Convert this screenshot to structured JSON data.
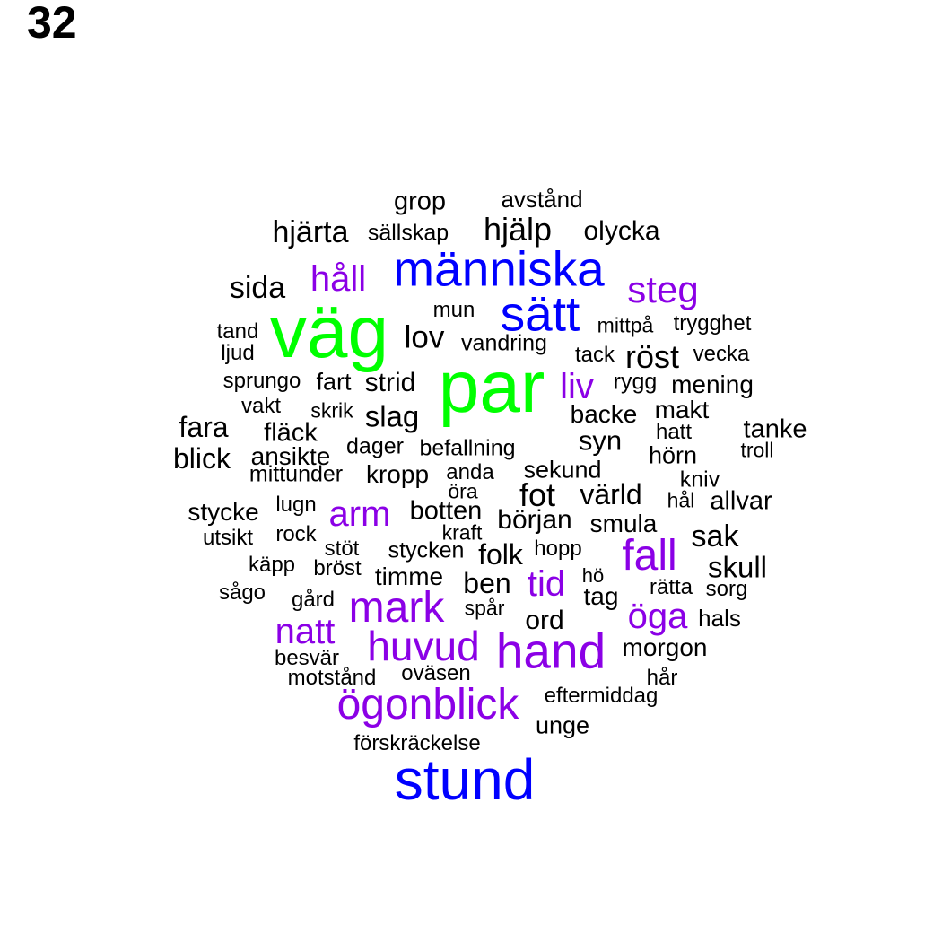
{
  "page_number": "32",
  "colors": {
    "black": "#000000",
    "purple": "#8B00E6",
    "blue": "#0000FF",
    "green": "#00FF00"
  },
  "words": [
    {
      "text": "grop",
      "color": "black"
    },
    {
      "text": "avstånd",
      "color": "black"
    },
    {
      "text": "hjärta",
      "color": "black"
    },
    {
      "text": "sällskap",
      "color": "black"
    },
    {
      "text": "hjälp",
      "color": "black"
    },
    {
      "text": "olycka",
      "color": "black"
    },
    {
      "text": "människa",
      "color": "blue"
    },
    {
      "text": "håll",
      "color": "purple"
    },
    {
      "text": "sida",
      "color": "black"
    },
    {
      "text": "steg",
      "color": "purple"
    },
    {
      "text": "väg",
      "color": "green"
    },
    {
      "text": "sätt",
      "color": "blue"
    },
    {
      "text": "mun",
      "color": "black"
    },
    {
      "text": "mittpå",
      "color": "black"
    },
    {
      "text": "trygghet",
      "color": "black"
    },
    {
      "text": "tand",
      "color": "black"
    },
    {
      "text": "ljud",
      "color": "black"
    },
    {
      "text": "lov",
      "color": "black"
    },
    {
      "text": "vandring",
      "color": "black"
    },
    {
      "text": "tack",
      "color": "black"
    },
    {
      "text": "röst",
      "color": "black"
    },
    {
      "text": "vecka",
      "color": "black"
    },
    {
      "text": "par",
      "color": "green"
    },
    {
      "text": "sprungo",
      "color": "black"
    },
    {
      "text": "fart",
      "color": "black"
    },
    {
      "text": "strid",
      "color": "black"
    },
    {
      "text": "liv",
      "color": "purple"
    },
    {
      "text": "rygg",
      "color": "black"
    },
    {
      "text": "mening",
      "color": "black"
    },
    {
      "text": "vakt",
      "color": "black"
    },
    {
      "text": "skrik",
      "color": "black"
    },
    {
      "text": "slag",
      "color": "black"
    },
    {
      "text": "backe",
      "color": "black"
    },
    {
      "text": "makt",
      "color": "black"
    },
    {
      "text": "fara",
      "color": "black"
    },
    {
      "text": "fläck",
      "color": "black"
    },
    {
      "text": "hatt",
      "color": "black"
    },
    {
      "text": "tanke",
      "color": "black"
    },
    {
      "text": "syn",
      "color": "black"
    },
    {
      "text": "ansikte",
      "color": "black"
    },
    {
      "text": "dager",
      "color": "black"
    },
    {
      "text": "befallning",
      "color": "black"
    },
    {
      "text": "blick",
      "color": "black"
    },
    {
      "text": "hörn",
      "color": "black"
    },
    {
      "text": "troll",
      "color": "black"
    },
    {
      "text": "mittunder",
      "color": "black"
    },
    {
      "text": "kropp",
      "color": "black"
    },
    {
      "text": "anda",
      "color": "black"
    },
    {
      "text": "kniv",
      "color": "black"
    },
    {
      "text": "sekund",
      "color": "black"
    },
    {
      "text": "öra",
      "color": "black"
    },
    {
      "text": "fot",
      "color": "black"
    },
    {
      "text": "värld",
      "color": "black"
    },
    {
      "text": "hål",
      "color": "black"
    },
    {
      "text": "allvar",
      "color": "black"
    },
    {
      "text": "stycke",
      "color": "black"
    },
    {
      "text": "lugn",
      "color": "black"
    },
    {
      "text": "arm",
      "color": "purple"
    },
    {
      "text": "botten",
      "color": "black"
    },
    {
      "text": "början",
      "color": "black"
    },
    {
      "text": "smula",
      "color": "black"
    },
    {
      "text": "utsikt",
      "color": "black"
    },
    {
      "text": "rock",
      "color": "black"
    },
    {
      "text": "kraft",
      "color": "black"
    },
    {
      "text": "sak",
      "color": "black"
    },
    {
      "text": "stöt",
      "color": "black"
    },
    {
      "text": "stycken",
      "color": "black"
    },
    {
      "text": "folk",
      "color": "black"
    },
    {
      "text": "hopp",
      "color": "black"
    },
    {
      "text": "fall",
      "color": "purple"
    },
    {
      "text": "käpp",
      "color": "black"
    },
    {
      "text": "bröst",
      "color": "black"
    },
    {
      "text": "timme",
      "color": "black"
    },
    {
      "text": "skull",
      "color": "black"
    },
    {
      "text": "ben",
      "color": "black"
    },
    {
      "text": "tid",
      "color": "purple"
    },
    {
      "text": "hö",
      "color": "black"
    },
    {
      "text": "sågo",
      "color": "black"
    },
    {
      "text": "rätta",
      "color": "black"
    },
    {
      "text": "sorg",
      "color": "black"
    },
    {
      "text": "gård",
      "color": "black"
    },
    {
      "text": "tag",
      "color": "black"
    },
    {
      "text": "mark",
      "color": "purple"
    },
    {
      "text": "spår",
      "color": "black"
    },
    {
      "text": "öga",
      "color": "purple"
    },
    {
      "text": "natt",
      "color": "purple"
    },
    {
      "text": "ord",
      "color": "black"
    },
    {
      "text": "hals",
      "color": "black"
    },
    {
      "text": "huvud",
      "color": "purple"
    },
    {
      "text": "hand",
      "color": "purple"
    },
    {
      "text": "morgon",
      "color": "black"
    },
    {
      "text": "besvär",
      "color": "black"
    },
    {
      "text": "motstånd",
      "color": "black"
    },
    {
      "text": "oväsen",
      "color": "black"
    },
    {
      "text": "hår",
      "color": "black"
    },
    {
      "text": "ögonblick",
      "color": "purple"
    },
    {
      "text": "eftermiddag",
      "color": "black"
    },
    {
      "text": "unge",
      "color": "black"
    },
    {
      "text": "förskräckelse",
      "color": "black"
    },
    {
      "text": "stund",
      "color": "blue"
    }
  ]
}
